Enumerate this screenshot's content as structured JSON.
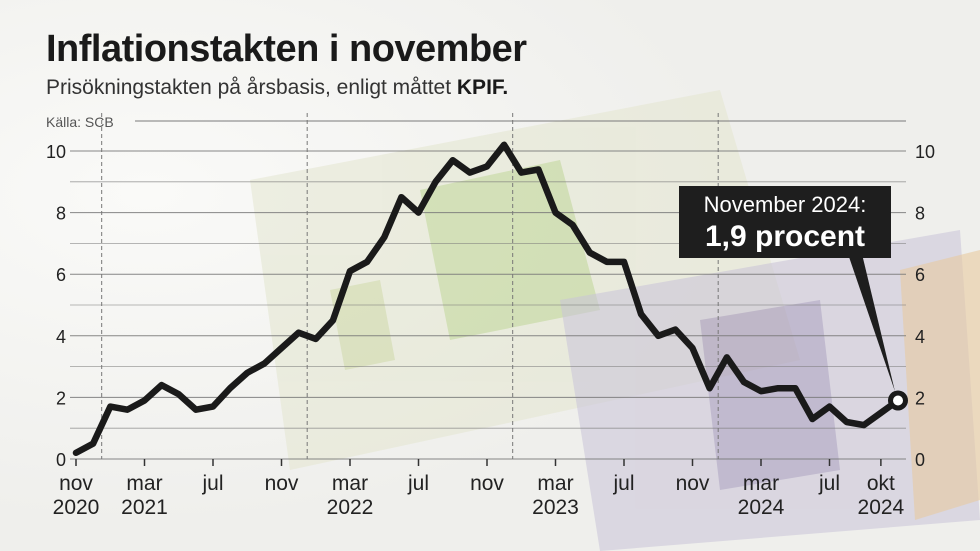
{
  "header": {
    "title": "Inflationstakten i november",
    "subtitle_prefix": "Prisökningstakten på årsbasis, enligt måttet",
    "subtitle_bold": "KPIF.",
    "source": "Källa: SCB"
  },
  "annotation": {
    "line1": "November 2024:",
    "line2": "1,9 procent"
  },
  "colors": {
    "line": "#1a1a1a",
    "grid": "#7a7a7a",
    "annotation_bg": "#1e1e1e"
  },
  "chart_data": {
    "type": "line",
    "title": "Inflationstakten i november",
    "ylim": [
      0,
      10
    ],
    "y_ticks": [
      0,
      2,
      4,
      6,
      8,
      10
    ],
    "y_tick_labels": [
      "0",
      "2",
      "4",
      "6",
      "8",
      "10"
    ],
    "x_start": "2020-11",
    "x_end": "2024-11",
    "x_tick_labels": [
      {
        "month": "nov",
        "year": "2020"
      },
      {
        "month": "mar",
        "year": "2021"
      },
      {
        "month": "jul",
        "year": ""
      },
      {
        "month": "nov",
        "year": ""
      },
      {
        "month": "mar",
        "year": "2022"
      },
      {
        "month": "jul",
        "year": ""
      },
      {
        "month": "nov",
        "year": ""
      },
      {
        "month": "mar",
        "year": "2023"
      },
      {
        "month": "jul",
        "year": ""
      },
      {
        "month": "nov",
        "year": ""
      },
      {
        "month": "mar",
        "year": "2024"
      },
      {
        "month": "jul",
        "year": ""
      },
      {
        "month": "okt",
        "year": "2024"
      }
    ],
    "x_tick_dates": [
      "2020-11",
      "2021-03",
      "2021-07",
      "2021-11",
      "2022-03",
      "2022-07",
      "2022-11",
      "2023-03",
      "2023-07",
      "2023-11",
      "2024-03",
      "2024-07",
      "2024-10"
    ],
    "year_dividers": [
      "2021-01",
      "2022-01",
      "2023-01",
      "2024-01"
    ],
    "series": [
      {
        "x": [
          "2020-11",
          "2020-12",
          "2021-01",
          "2021-02",
          "2021-03",
          "2021-04",
          "2021-05",
          "2021-06",
          "2021-07",
          "2021-08",
          "2021-09",
          "2021-10",
          "2021-11",
          "2021-12",
          "2022-01",
          "2022-02",
          "2022-03",
          "2022-04",
          "2022-05",
          "2022-06",
          "2022-07",
          "2022-08",
          "2022-09",
          "2022-10",
          "2022-11",
          "2022-12",
          "2023-01",
          "2023-02",
          "2023-03",
          "2023-04",
          "2023-05",
          "2023-06",
          "2023-07",
          "2023-08",
          "2023-09",
          "2023-10",
          "2023-11",
          "2023-12",
          "2024-01",
          "2024-02",
          "2024-03",
          "2024-04",
          "2024-05",
          "2024-06",
          "2024-07",
          "2024-08",
          "2024-09",
          "2024-10",
          "2024-11"
        ],
        "values": [
          0.2,
          0.5,
          1.7,
          1.6,
          1.9,
          2.4,
          2.1,
          1.6,
          1.7,
          2.3,
          2.8,
          3.1,
          3.6,
          4.1,
          3.9,
          4.5,
          6.1,
          6.4,
          7.2,
          8.5,
          8.0,
          9.0,
          9.7,
          9.3,
          9.5,
          10.2,
          9.3,
          9.4,
          8.0,
          7.6,
          6.7,
          6.4,
          6.4,
          4.7,
          4.0,
          4.2,
          3.6,
          2.3,
          3.3,
          2.5,
          2.2,
          2.3,
          2.3,
          1.3,
          1.7,
          1.2,
          1.1,
          1.5,
          1.9
        ]
      }
    ]
  }
}
